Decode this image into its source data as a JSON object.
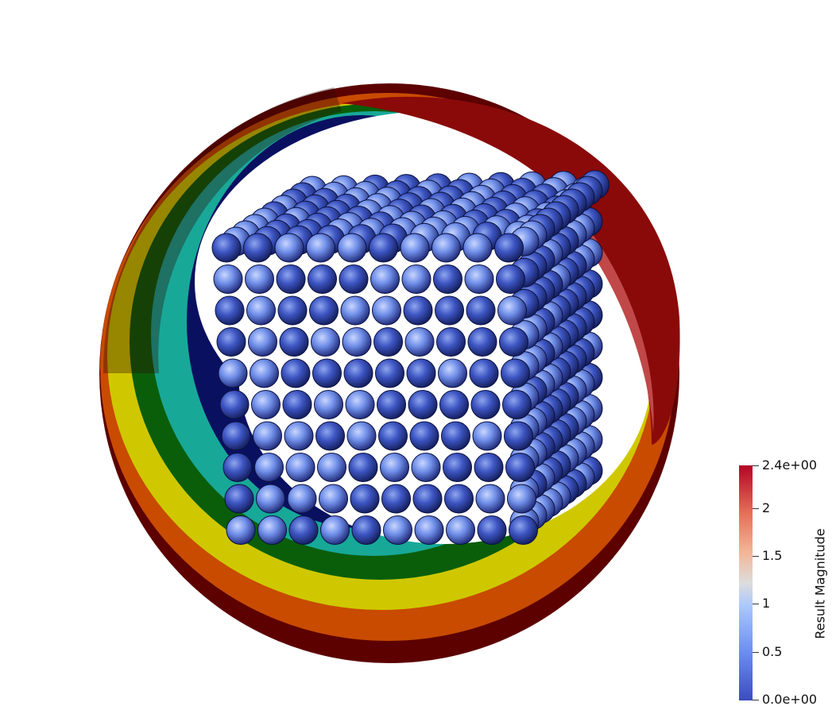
{
  "colorbar": {
    "title": "Result Magnitude",
    "ticks": [
      "2.4e+00",
      "2",
      "1.5",
      "1",
      "0.5",
      "0.0e+00"
    ],
    "range": [
      0.0,
      2.4
    ],
    "colors": [
      "#3b4cc0",
      "#6a8cf0",
      "#aac7fd",
      "#dddddd",
      "#f4b597",
      "#e46e56",
      "#b40426"
    ]
  },
  "ring_colors": [
    "#5a0000",
    "#c84b00",
    "#d4d000",
    "#0a6a0a",
    "#1fb8a8",
    "#000066"
  ],
  "sphere_color_range": [
    "#3344bb",
    "#9bb7f0"
  ]
}
